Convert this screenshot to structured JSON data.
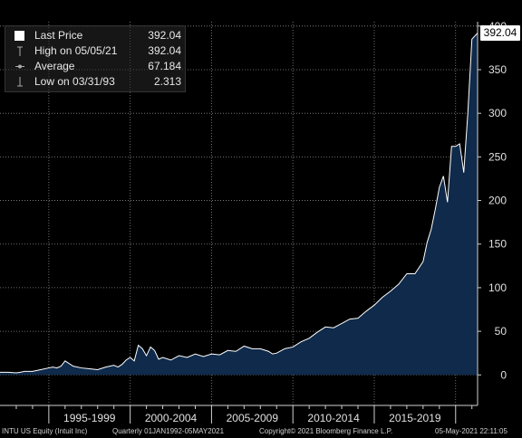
{
  "chart_data": {
    "type": "area",
    "ticker": "INTU US Equity (Intuit Inc)",
    "frequency": "Quarterly",
    "range": "01JAN1992-05MAY2021",
    "x_tick_labels": [
      "1995-1999",
      "2000-2004",
      "2005-2009",
      "2010-2014",
      "2015-2019"
    ],
    "y_ticks": [
      0,
      50,
      100,
      150,
      200,
      250,
      300,
      350,
      400
    ],
    "ylim": [
      -35,
      405
    ],
    "xlim": [
      1992.0,
      2021.35
    ],
    "grid": true,
    "x": [
      1992.0,
      1992.5,
      1993.0,
      1993.25,
      1993.5,
      1994.0,
      1994.5,
      1995.0,
      1995.25,
      1995.5,
      1995.75,
      1996.0,
      1996.5,
      1997.0,
      1997.5,
      1998.0,
      1998.5,
      1999.0,
      1999.25,
      1999.5,
      1999.75,
      2000.0,
      2000.25,
      2000.5,
      2000.75,
      2001.0,
      2001.25,
      2001.5,
      2001.75,
      2002.0,
      2002.5,
      2003.0,
      2003.5,
      2004.0,
      2004.5,
      2005.0,
      2005.5,
      2006.0,
      2006.5,
      2007.0,
      2007.5,
      2008.0,
      2008.5,
      2008.75,
      2009.0,
      2009.5,
      2010.0,
      2010.5,
      2011.0,
      2011.5,
      2012.0,
      2012.5,
      2013.0,
      2013.5,
      2014.0,
      2014.5,
      2015.0,
      2015.5,
      2016.0,
      2016.5,
      2017.0,
      2017.5,
      2018.0,
      2018.25,
      2018.5,
      2018.75,
      2019.0,
      2019.25,
      2019.5,
      2019.75,
      2020.0,
      2020.25,
      2020.5,
      2020.75,
      2021.0,
      2021.35
    ],
    "values": [
      3,
      3,
      2.3,
      3,
      4,
      4,
      6,
      8,
      9,
      8,
      10,
      16,
      10,
      8,
      7,
      6,
      9,
      11,
      9,
      12,
      17,
      20,
      16,
      34,
      30,
      22,
      32,
      28,
      18,
      20,
      17,
      22,
      20,
      24,
      21,
      24,
      23,
      28,
      27,
      33,
      30,
      30,
      27,
      24,
      25,
      30,
      32,
      38,
      42,
      49,
      55,
      54,
      59,
      64,
      65,
      73,
      80,
      89,
      96,
      104,
      116,
      116,
      130,
      152,
      167,
      190,
      215,
      228,
      198,
      262,
      262,
      265,
      232,
      300,
      385,
      392.04
    ],
    "series": [
      {
        "name": "Last Price",
        "color": "#ffffff",
        "fill": "#0f2a4a"
      }
    ],
    "legend": [
      {
        "icon": "filled-square",
        "label": "Last Price",
        "value": "392.04"
      },
      {
        "icon": "high-marker",
        "label": "High on 05/05/21",
        "value": "392.04"
      },
      {
        "icon": "average-marker",
        "label": "Average",
        "value": "67.184"
      },
      {
        "icon": "low-marker",
        "label": "Low on 03/31/93",
        "value": "2.313"
      }
    ],
    "last_value_tag": "392.04"
  },
  "footer": {
    "ticker": "INTU US Equity (Intuit Inc)",
    "frequency_range": "Quarterly 01JAN1992-05MAY2021",
    "copyright": "Copyright© 2021 Bloomberg Finance L.P.",
    "timestamp": "05-May-2021 22:11:05"
  }
}
